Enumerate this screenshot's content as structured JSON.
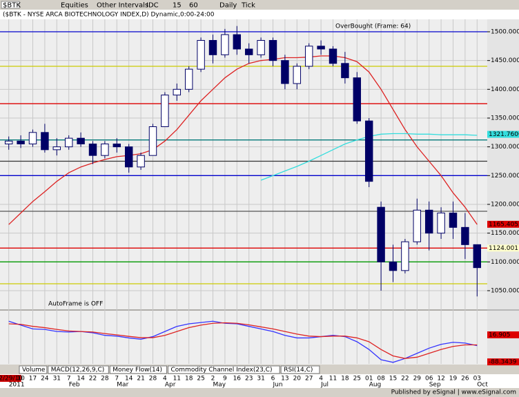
{
  "toolbar": {
    "symbol": "$BTK",
    "items": [
      "Equities",
      "Other Intervals",
      "IDC",
      "15",
      "60",
      "Daily",
      "Tick"
    ]
  },
  "tabs": [
    "Volume",
    "MACD(12,26,9,C)",
    "Money Flow(14)",
    "Commodity Channel Index(23,C)",
    "RSI(14,C)"
  ],
  "footer": "Published by eSignal | www.eSignal.com",
  "chart_data": [
    {
      "type": "candlestick",
      "title": "($BTK - NYSE ARCA BIOTECHNOLOGY INDEX,D) Dynamic,0:00-24:00",
      "categories": [
        "12/29/10",
        "10",
        "17",
        "24",
        "31",
        "7",
        "14",
        "22",
        "28",
        "7",
        "14",
        "21",
        "28",
        "4",
        "11",
        "18",
        "25",
        "2",
        "9",
        "16",
        "23",
        "31",
        "6",
        "13",
        "20",
        "27",
        "4",
        "11",
        "18",
        "25",
        "01",
        "08",
        "15",
        "22",
        "29",
        "06",
        "12",
        "19",
        "26",
        "03"
      ],
      "open": [
        1305,
        1310,
        1305,
        1325,
        1295,
        1300,
        1315,
        1305,
        1285,
        1305,
        1300,
        1265,
        1285,
        1335,
        1390,
        1400,
        1435,
        1485,
        1460,
        1495,
        1470,
        1460,
        1485,
        1450,
        1410,
        1440,
        1475,
        1470,
        1445,
        1420,
        1345,
        1195,
        1100,
        1085,
        1135,
        1190,
        1150,
        1185,
        1160,
        1130
      ],
      "high": [
        1318,
        1320,
        1330,
        1340,
        1315,
        1320,
        1325,
        1310,
        1310,
        1315,
        1305,
        1290,
        1340,
        1395,
        1410,
        1440,
        1490,
        1495,
        1505,
        1510,
        1480,
        1490,
        1490,
        1460,
        1445,
        1480,
        1485,
        1475,
        1465,
        1430,
        1350,
        1205,
        1130,
        1140,
        1210,
        1205,
        1195,
        1205,
        1185,
        1130
      ],
      "low": [
        1295,
        1298,
        1300,
        1290,
        1285,
        1295,
        1300,
        1270,
        1280,
        1290,
        1255,
        1260,
        1285,
        1335,
        1380,
        1395,
        1430,
        1445,
        1455,
        1460,
        1445,
        1455,
        1440,
        1400,
        1400,
        1435,
        1460,
        1440,
        1410,
        1340,
        1230,
        1050,
        1065,
        1080,
        1130,
        1120,
        1140,
        1140,
        1105,
        1040
      ],
      "close": [
        1310,
        1305,
        1325,
        1295,
        1300,
        1315,
        1305,
        1285,
        1305,
        1300,
        1265,
        1285,
        1335,
        1390,
        1400,
        1435,
        1485,
        1460,
        1495,
        1470,
        1460,
        1485,
        1450,
        1410,
        1440,
        1475,
        1470,
        1445,
        1420,
        1345,
        1240,
        1100,
        1085,
        1135,
        1190,
        1150,
        1185,
        1160,
        1130,
        1090
      ],
      "ylim": [
        1017.6,
        1521.6
      ],
      "yticks": [
        {
          "value": 1050,
          "label": "1050.000"
        },
        {
          "value": 1100,
          "label": "1100.000"
        },
        {
          "value": 1150,
          "label": "1150.000"
        },
        {
          "value": 1200,
          "label": "1200.000"
        },
        {
          "value": 1250,
          "label": "1250.000"
        },
        {
          "value": 1300,
          "label": "1300.000"
        },
        {
          "value": 1350,
          "label": "1350.000"
        },
        {
          "value": 1400,
          "label": "1400.000"
        },
        {
          "value": 1450,
          "label": "1450.000"
        },
        {
          "value": 1500,
          "label": "1500.000"
        }
      ],
      "overlays": [
        {
          "color": "#dd2222",
          "values": [
            1165,
            1185,
            1205,
            1222,
            1240,
            1255,
            1265,
            1272,
            1278,
            1283,
            1285,
            1288,
            1295,
            1310,
            1330,
            1355,
            1380,
            1400,
            1420,
            1435,
            1445,
            1450,
            1452,
            1455,
            1455,
            1456,
            1458,
            1458,
            1455,
            1448,
            1430,
            1400,
            1365,
            1330,
            1300,
            1275,
            1250,
            1220,
            1195,
            1165
          ]
        },
        {
          "color": "#33dddd",
          "values": [
            null,
            null,
            null,
            null,
            null,
            null,
            null,
            null,
            null,
            null,
            null,
            null,
            null,
            null,
            null,
            null,
            null,
            null,
            null,
            null,
            null,
            1242,
            1250,
            1258,
            1266,
            1275,
            1285,
            1295,
            1305,
            1312,
            1318,
            1322,
            1323,
            1323,
            1322,
            1322,
            1321,
            1321,
            1321,
            1320
          ]
        }
      ],
      "levels": [
        {
          "value": 1500,
          "color": "#0000cc"
        },
        {
          "value": 1440,
          "color": "#cccc00"
        },
        {
          "value": 1375,
          "color": "#dd0000"
        },
        {
          "value": 1312,
          "color": "#007777"
        },
        {
          "value": 1275,
          "color": "#333333"
        },
        {
          "value": 1250,
          "color": "#0000cc"
        },
        {
          "value": 1188,
          "color": "#555555"
        },
        {
          "value": 1124,
          "color": "#dd0000"
        },
        {
          "value": 1100,
          "color": "#009900"
        },
        {
          "value": 1062,
          "color": "#cccc00"
        }
      ],
      "price_markers": [
        {
          "value": 1321.76,
          "label": "1321.7600",
          "color": "#33dddd"
        },
        {
          "value": 1165.40555,
          "label": "1165.40555",
          "color": "#dd0000"
        },
        {
          "value": 1124.0011,
          "label": "1124.0011",
          "color": "#ffffcc"
        }
      ],
      "annotations": [
        "OverBought (Frame: 64)",
        "AutoFrame is OFF"
      ],
      "month_labels": [
        "2011",
        "Feb",
        "Mar",
        "Apr",
        "May",
        "Jun",
        "Jul",
        "Aug",
        "Sep",
        "Oct"
      ]
    },
    {
      "type": "line",
      "series": [
        {
          "color": "#3333ff",
          "values": [
            70,
            55,
            40,
            38,
            30,
            28,
            30,
            25,
            15,
            12,
            5,
            0,
            10,
            30,
            50,
            60,
            65,
            70,
            62,
            60,
            50,
            40,
            30,
            15,
            5,
            5,
            10,
            15,
            10,
            -10,
            -40,
            -80,
            -90,
            -75,
            -55,
            -35,
            -20,
            -12,
            -15,
            -25
          ]
        },
        {
          "color": "#dd2222",
          "values": [
            60,
            58,
            50,
            45,
            38,
            32,
            30,
            28,
            22,
            17,
            11,
            6,
            6,
            15,
            30,
            45,
            55,
            62,
            64,
            62,
            56,
            48,
            40,
            30,
            20,
            12,
            10,
            12,
            12,
            5,
            -10,
            -40,
            -65,
            -75,
            -70,
            -55,
            -40,
            -28,
            -22,
            -22
          ]
        }
      ],
      "ylim": [
        -96,
        111
      ],
      "price_markers": [
        {
          "value": 16.905,
          "label": "16.905",
          "color": "#dd0000"
        },
        {
          "value": -88.3439,
          "label": "-88.3439",
          "color": "#dd0000"
        }
      ]
    }
  ]
}
